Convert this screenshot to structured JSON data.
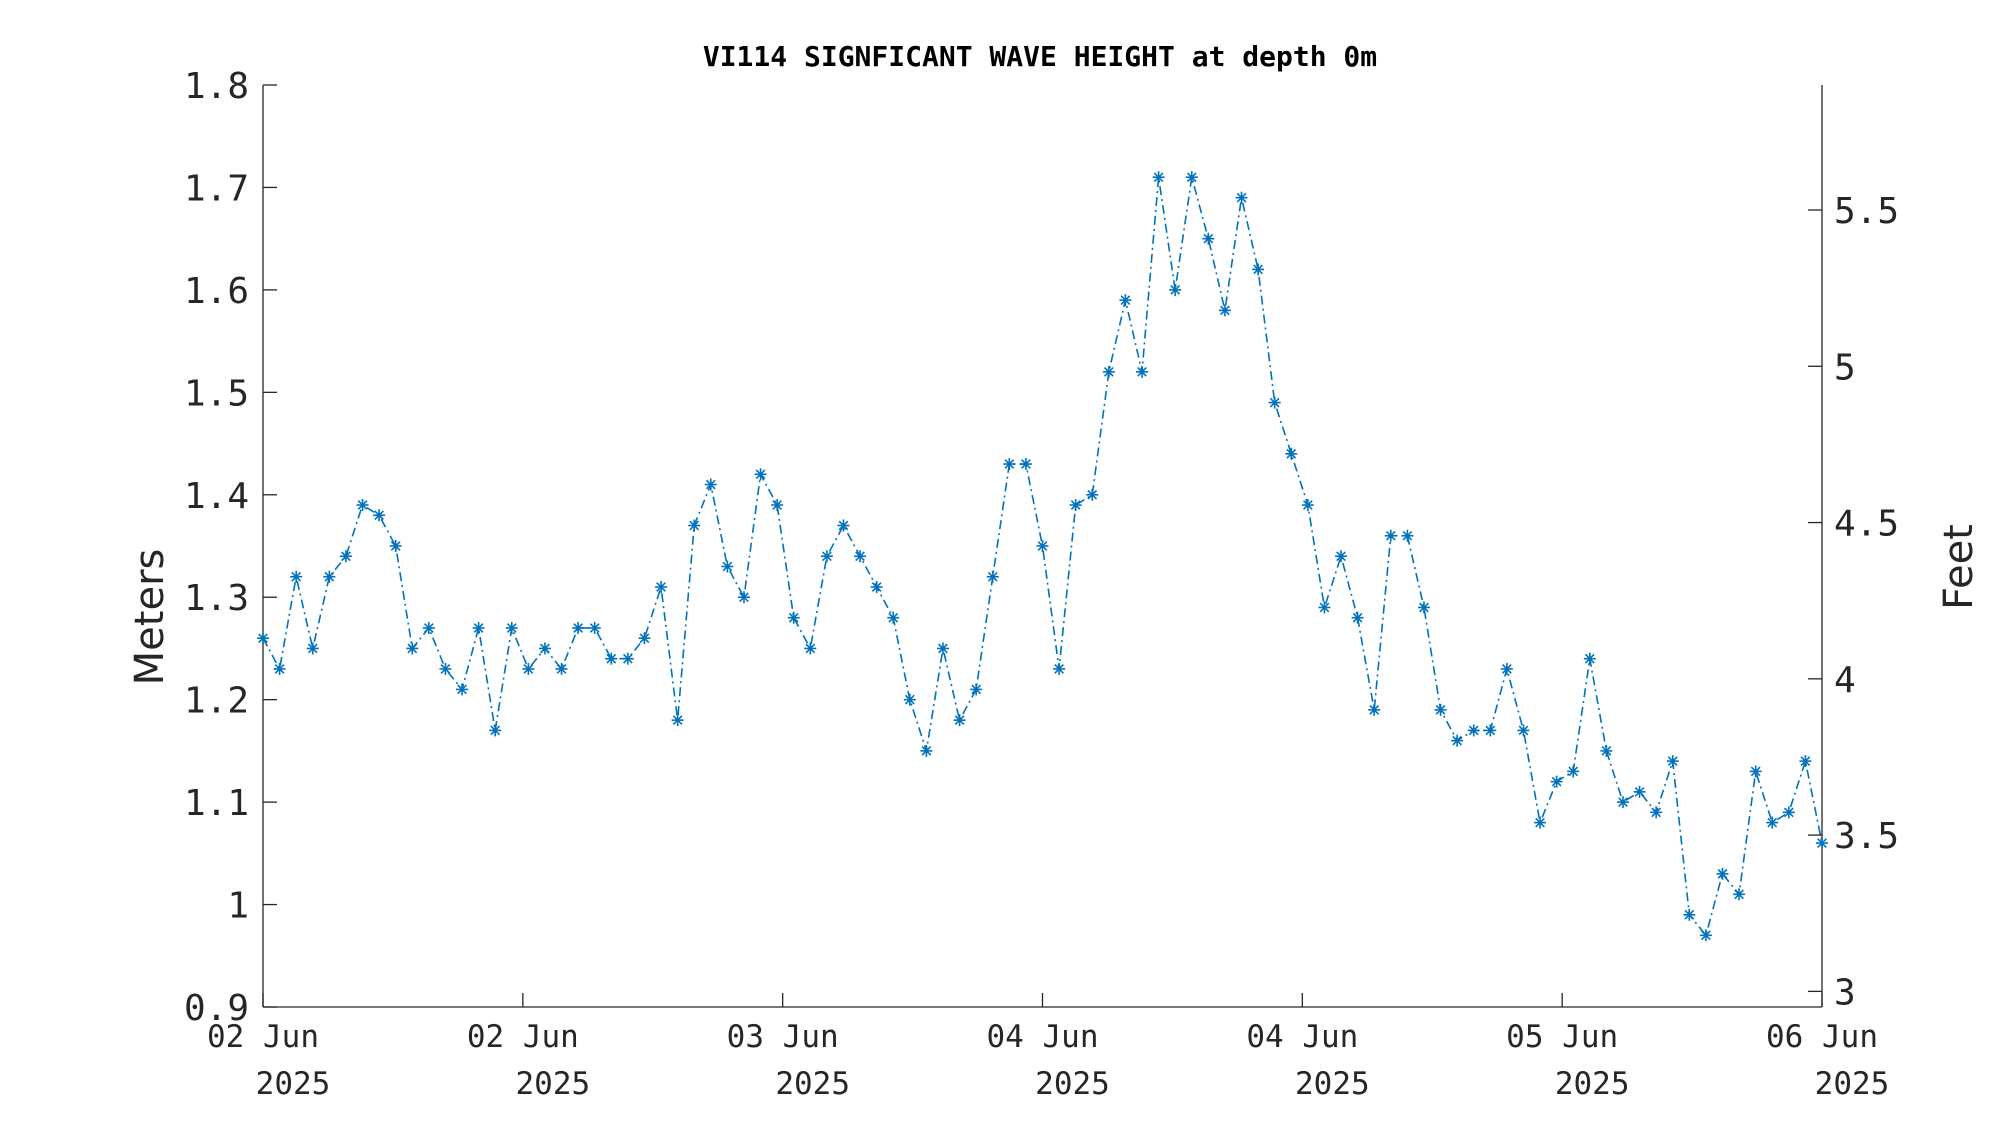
{
  "chart_data": {
    "type": "line",
    "title": "VI114 SIGNFICANT WAVE HEIGHT at depth 0m",
    "ylabel": "Meters",
    "y2label": "Feet",
    "ylim": [
      0.9,
      1.8
    ],
    "y2lim": [
      2.95,
      5.9
    ],
    "yticks": [
      "0.9",
      "1",
      "1.1",
      "1.2",
      "1.3",
      "1.4",
      "1.5",
      "1.6",
      "1.7",
      "1.8"
    ],
    "y2ticks": [
      "3",
      "3.5",
      "4",
      "4.5",
      "5",
      "5.5"
    ],
    "xlim": [
      0,
      96
    ],
    "xticks": [
      {
        "x": 0,
        "line1": "02 Jun",
        "line2": "2025"
      },
      {
        "x": 16,
        "line1": "02 Jun",
        "line2": "2025"
      },
      {
        "x": 32,
        "line1": "03 Jun",
        "line2": "2025"
      },
      {
        "x": 48,
        "line1": "04 Jun",
        "line2": "2025"
      },
      {
        "x": 64,
        "line1": "04 Jun",
        "line2": "2025"
      },
      {
        "x": 80,
        "line1": "05 Jun",
        "line2": "2025"
      },
      {
        "x": 96,
        "line1": "06 Jun",
        "line2": "2025"
      }
    ],
    "grid": false,
    "color": "#0072bd",
    "line_style": "dash-dot",
    "marker": "asterisk",
    "series": [
      {
        "values": [
          1.26,
          1.23,
          1.32,
          1.25,
          1.32,
          1.34,
          1.39,
          1.38,
          1.35,
          1.25,
          1.27,
          1.23,
          1.21,
          1.27,
          1.17,
          1.27,
          1.23,
          1.25,
          1.23,
          1.27,
          1.27,
          1.24,
          1.24,
          1.26,
          1.31,
          1.18,
          1.37,
          1.41,
          1.33,
          1.3,
          1.42,
          1.39,
          1.28,
          1.25,
          1.34,
          1.37,
          1.34,
          1.31,
          1.28,
          1.2,
          1.15,
          1.25,
          1.18,
          1.21,
          1.32,
          1.43,
          1.43,
          1.35,
          1.23,
          1.39,
          1.4,
          1.52,
          1.59,
          1.52,
          1.71,
          1.6,
          1.71,
          1.65,
          1.58,
          1.69,
          1.62,
          1.49,
          1.44,
          1.39,
          1.29,
          1.34,
          1.28,
          1.19,
          1.36,
          1.36,
          1.29,
          1.19,
          1.16,
          1.17,
          1.17,
          1.23,
          1.17,
          1.08,
          1.12,
          1.13,
          1.24,
          1.15,
          1.1,
          1.11,
          1.09,
          1.14,
          0.99,
          0.97,
          1.03,
          1.01,
          1.13,
          1.08,
          1.09,
          1.14,
          1.06
        ]
      }
    ]
  }
}
